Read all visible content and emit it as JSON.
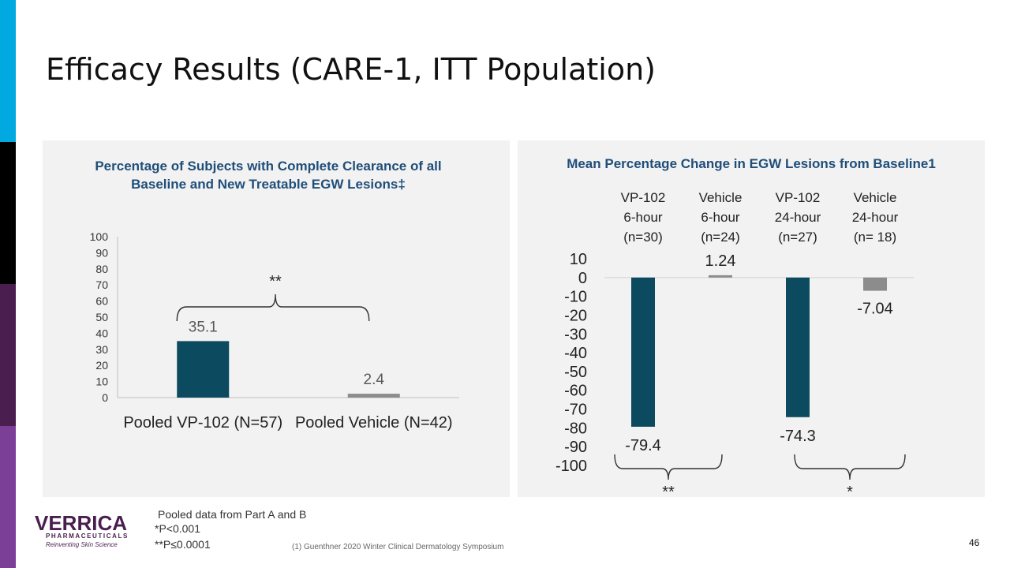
{
  "slide": {
    "title": "Efficacy Results (CARE-1, ITT Population)",
    "page_number": "46",
    "footnotes": [
      "Pooled data from Part A and B",
      "*P<0.001",
      "**P≤0.0001"
    ],
    "source": "(1) Guenthner 2020 Winter Clinical Dermatology Symposium"
  },
  "logo": {
    "name": "VERRICA",
    "sub": "PHARMACEUTICALS",
    "tagline": "Reinventing Skin Science"
  },
  "colors": {
    "primary_bar": "#0c4a60",
    "vehicle_bar": "#8c8c8c",
    "title_blue": "#1f4e79"
  },
  "chart_data": [
    {
      "type": "bar",
      "title_line1": "Percentage of Subjects with Complete Clearance of all",
      "title_line2": "Baseline and New Treatable EGW Lesions‡",
      "categories": [
        "Pooled VP-102 (N=57)",
        "Pooled Vehicle (N=42)"
      ],
      "values": [
        35.1,
        2.4
      ],
      "value_labels": [
        "35.1",
        "2.4"
      ],
      "ylim": [
        0,
        100
      ],
      "yticks": [
        "0",
        "10",
        "20",
        "30",
        "40",
        "50",
        "60",
        "70",
        "80",
        "90",
        "100"
      ],
      "significance": "**"
    },
    {
      "type": "bar",
      "title": "Mean Percentage Change in EGW Lesions from Baseline1",
      "categories": [
        [
          "VP-102",
          "6-hour",
          "(n=30)"
        ],
        [
          "Vehicle",
          "6-hour",
          "(n=24)"
        ],
        [
          "VP-102",
          "24-hour",
          "(n=27)"
        ],
        [
          "Vehicle",
          "24-hour",
          "(n= 18)"
        ]
      ],
      "values": [
        -79.4,
        1.24,
        -74.3,
        -7.04
      ],
      "value_labels": [
        "-79.4",
        "1.24",
        "-74.3",
        "-7.04"
      ],
      "ylim": [
        -100,
        10
      ],
      "yticks": [
        "10",
        "0",
        "-10",
        "-20",
        "-30",
        "-40",
        "-50",
        "-60",
        "-70",
        "-80",
        "-90",
        "-100"
      ],
      "significance": [
        "**",
        "*"
      ]
    }
  ]
}
